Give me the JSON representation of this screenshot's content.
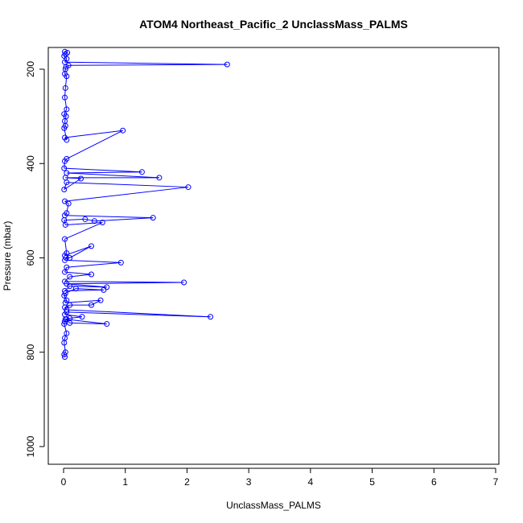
{
  "chart_data": {
    "type": "line",
    "title": "ATOM4 Northeast_Pacific_2 UnclassMass_PALMS",
    "xlabel": "UnclassMass_PALMS",
    "ylabel": "Pressure (mbar)",
    "xlim": [
      0,
      7
    ],
    "ylim": [
      1030,
      160
    ],
    "y_axis_inverted": true,
    "x_ticks": [
      0,
      1,
      2,
      3,
      4,
      5,
      6,
      7
    ],
    "y_ticks": [
      200,
      400,
      600,
      800,
      1000
    ],
    "grid": false,
    "legend": "none",
    "marker": "open-circle",
    "color": "#0000ff",
    "series": [
      {
        "points": [
          [
            0.02,
            810
          ],
          [
            0.01,
            805
          ],
          [
            0.03,
            800
          ],
          [
            0.01,
            780
          ],
          [
            0.02,
            770
          ],
          [
            0.05,
            760
          ],
          [
            0.01,
            740
          ],
          [
            0.02,
            735
          ],
          [
            0.05,
            730
          ],
          [
            0.1,
            738
          ],
          [
            0.7,
            740
          ],
          [
            0.03,
            730
          ],
          [
            0.1,
            728
          ],
          [
            0.3,
            725
          ],
          [
            0.02,
            720
          ],
          [
            0.05,
            715
          ],
          [
            2.38,
            725
          ],
          [
            0.05,
            710
          ],
          [
            0.02,
            705
          ],
          [
            0.1,
            700
          ],
          [
            0.45,
            700
          ],
          [
            0.6,
            690
          ],
          [
            0.03,
            695
          ],
          [
            0.05,
            690
          ],
          [
            0.01,
            680
          ],
          [
            0.03,
            675
          ],
          [
            0.2,
            665
          ],
          [
            0.65,
            668
          ],
          [
            0.02,
            670
          ],
          [
            0.1,
            660
          ],
          [
            0.7,
            662
          ],
          [
            0.05,
            655
          ],
          [
            1.95,
            652
          ],
          [
            0.02,
            650
          ],
          [
            0.1,
            640
          ],
          [
            0.45,
            635
          ],
          [
            0.02,
            630
          ],
          [
            0.05,
            620
          ],
          [
            0.93,
            610
          ],
          [
            0.02,
            605
          ],
          [
            0.04,
            600
          ],
          [
            0.1,
            600
          ],
          [
            0.45,
            575
          ],
          [
            0.02,
            595
          ],
          [
            0.05,
            590
          ],
          [
            0.02,
            560
          ],
          [
            0.63,
            525
          ],
          [
            0.03,
            530
          ],
          [
            0.01,
            520
          ],
          [
            0.35,
            518
          ],
          [
            0.5,
            522
          ],
          [
            1.45,
            515
          ],
          [
            0.02,
            510
          ],
          [
            0.05,
            505
          ],
          [
            0.08,
            485
          ],
          [
            0.02,
            480
          ],
          [
            2.02,
            450
          ],
          [
            0.05,
            440
          ],
          [
            0.01,
            455
          ],
          [
            0.28,
            432
          ],
          [
            0.03,
            430
          ],
          [
            1.55,
            430
          ],
          [
            0.05,
            420
          ],
          [
            1.27,
            418
          ],
          [
            0.01,
            410
          ],
          [
            0.02,
            395
          ],
          [
            0.05,
            390
          ],
          [
            0.96,
            330
          ],
          [
            0.02,
            345
          ],
          [
            0.05,
            350
          ],
          [
            0.01,
            325
          ],
          [
            0.03,
            320
          ],
          [
            0.02,
            310
          ],
          [
            0.04,
            300
          ],
          [
            0.01,
            295
          ],
          [
            0.05,
            285
          ],
          [
            0.02,
            260
          ],
          [
            0.03,
            240
          ],
          [
            0.05,
            215
          ],
          [
            0.02,
            210
          ],
          [
            0.03,
            200
          ],
          [
            0.04,
            195
          ],
          [
            0.08,
            192
          ],
          [
            2.65,
            190
          ],
          [
            0.02,
            185
          ],
          [
            0.05,
            178
          ],
          [
            0.01,
            172
          ],
          [
            0.03,
            168
          ],
          [
            0.06,
            165
          ],
          [
            0.02,
            163
          ]
        ]
      }
    ]
  }
}
